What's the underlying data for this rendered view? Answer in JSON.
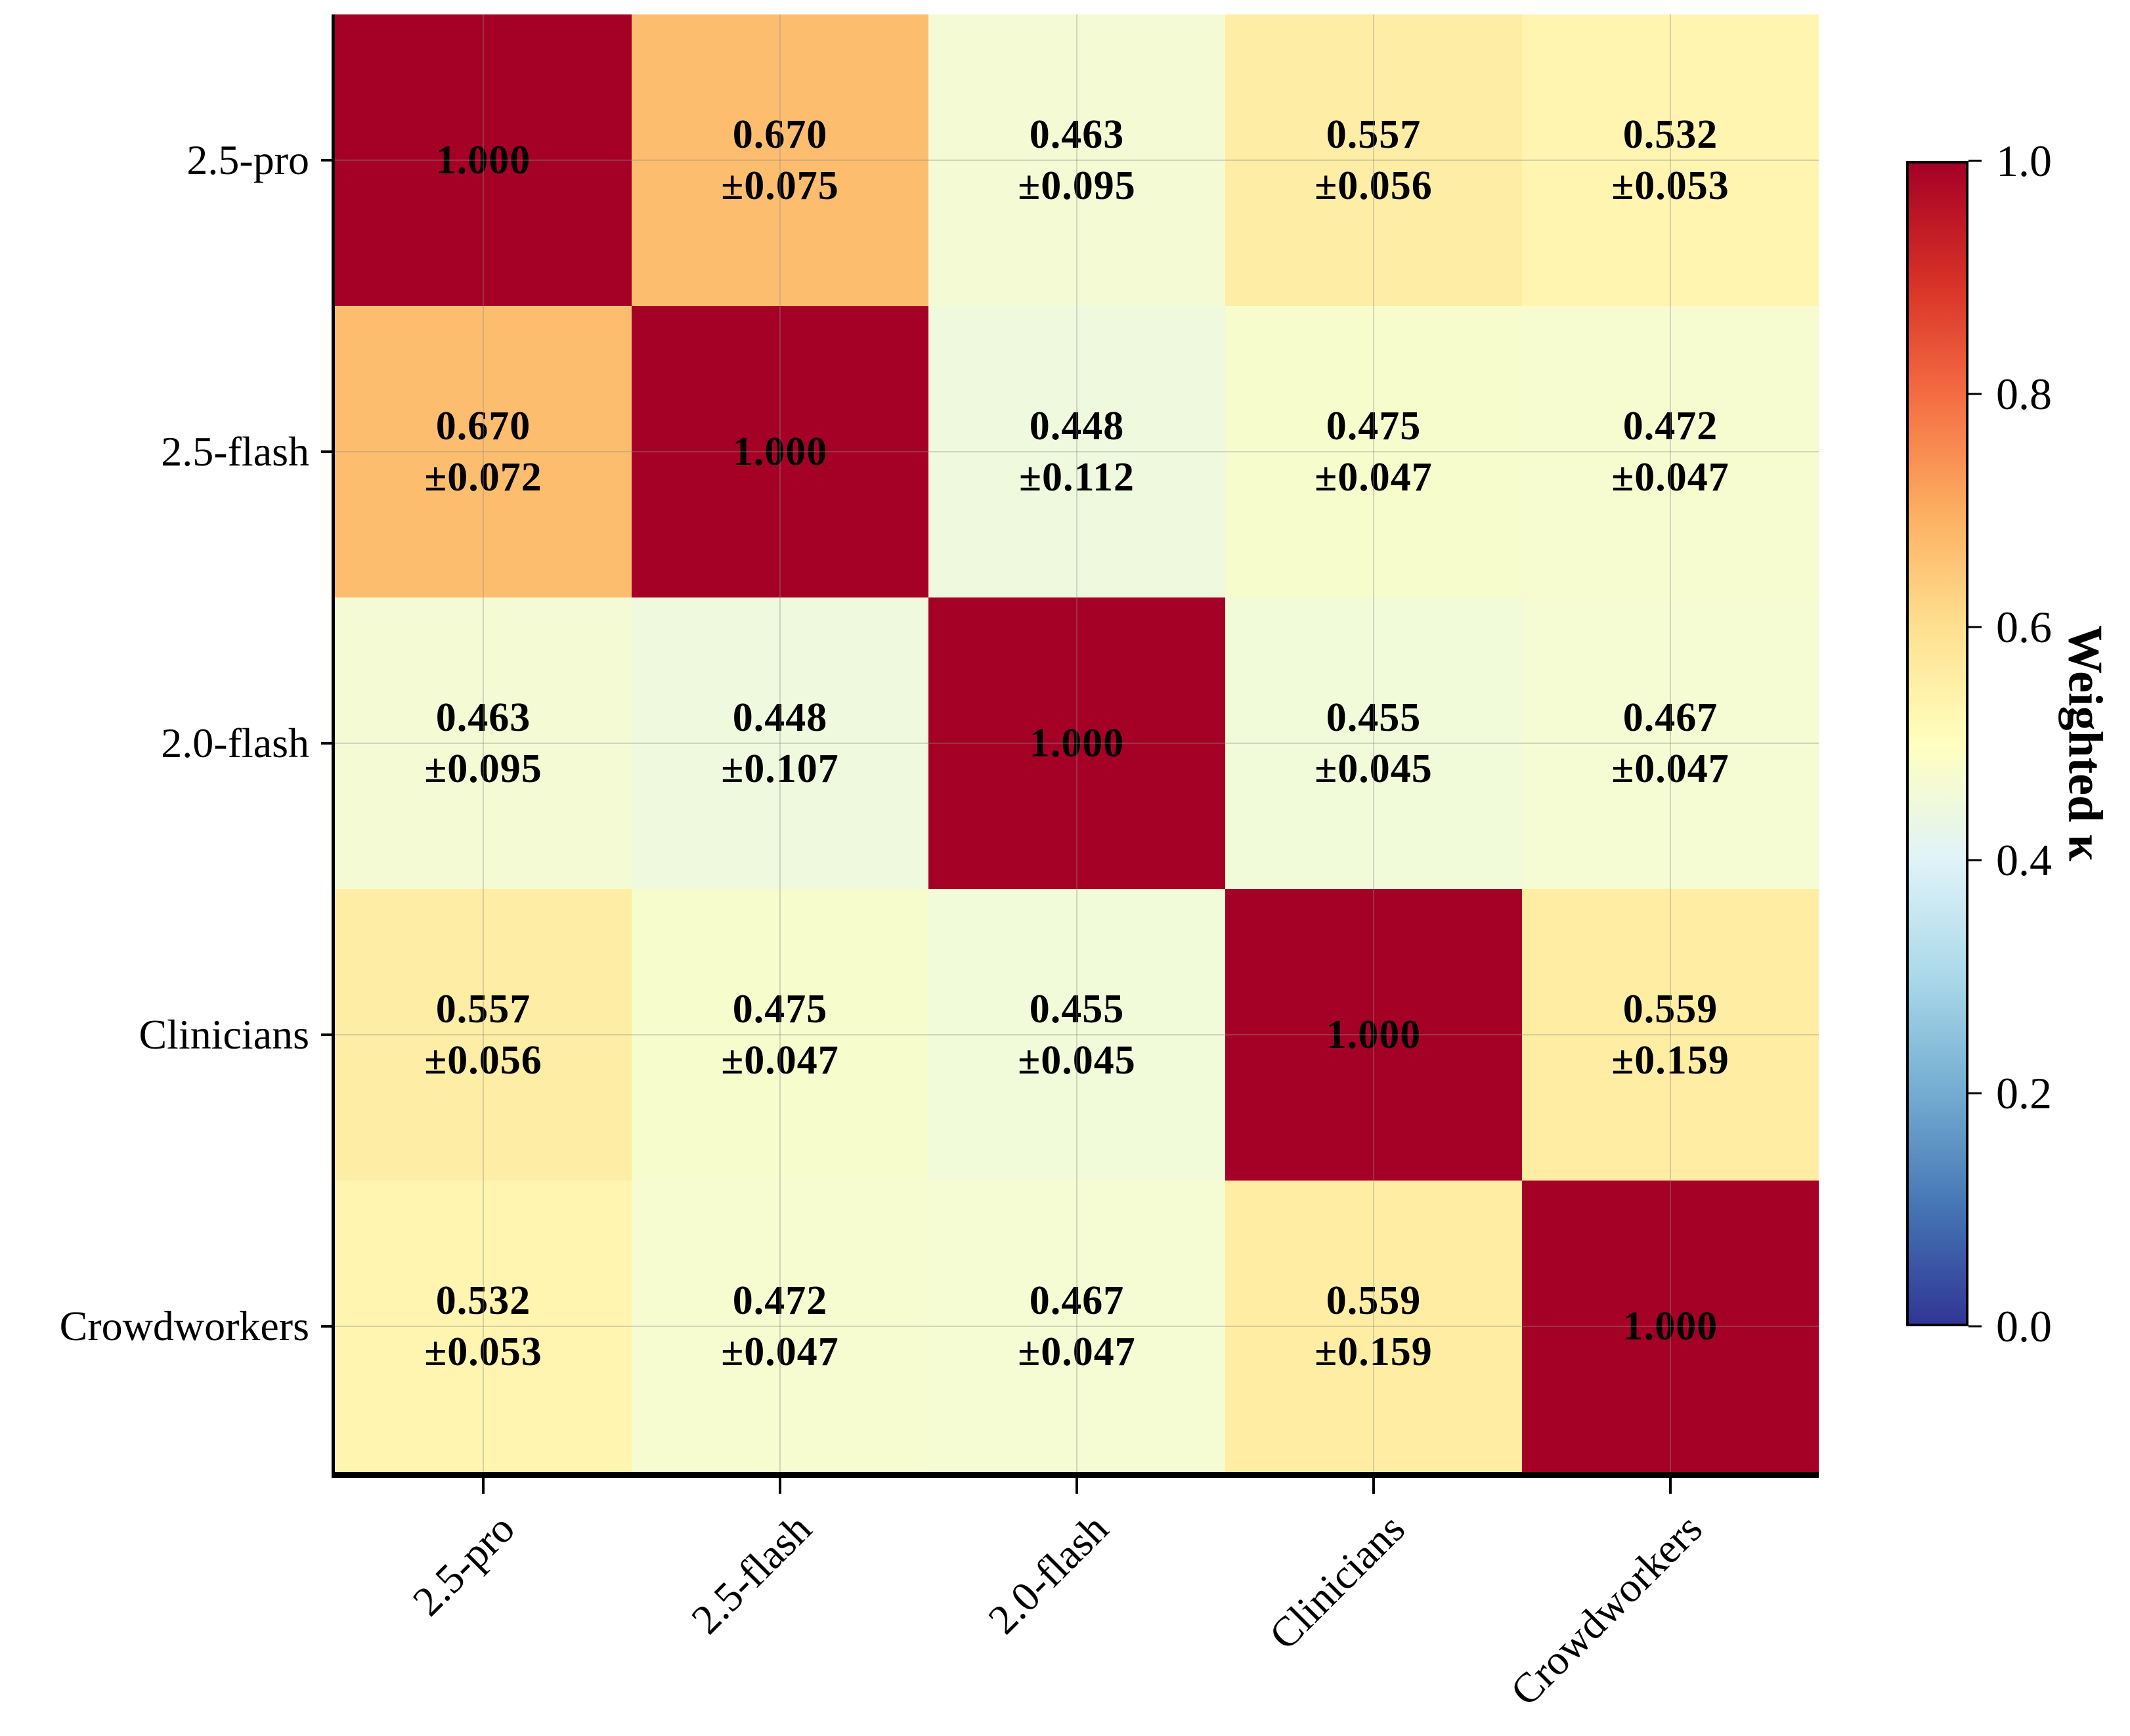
{
  "figure": {
    "background": "#ffffff",
    "text_color": "#000000"
  },
  "chart_data": {
    "type": "heatmap",
    "title": "",
    "x_categories": [
      "2.5-pro",
      "2.5-flash",
      "2.0-flash",
      "Clinicians",
      "Crowdworkers"
    ],
    "y_categories": [
      "2.5-pro",
      "2.5-flash",
      "2.0-flash",
      "Clinicians",
      "Crowdworkers"
    ],
    "values": [
      [
        1.0,
        0.67,
        0.463,
        0.557,
        0.532
      ],
      [
        0.67,
        1.0,
        0.448,
        0.475,
        0.472
      ],
      [
        0.463,
        0.448,
        1.0,
        0.455,
        0.467
      ],
      [
        0.557,
        0.475,
        0.455,
        1.0,
        0.559
      ],
      [
        0.532,
        0.472,
        0.467,
        0.559,
        1.0
      ]
    ],
    "errors": [
      [
        null,
        0.075,
        0.095,
        0.056,
        0.053
      ],
      [
        0.072,
        null,
        0.112,
        0.047,
        0.047
      ],
      [
        0.095,
        0.107,
        null,
        0.045,
        0.047
      ],
      [
        0.056,
        0.047,
        0.045,
        null,
        0.159
      ],
      [
        0.053,
        0.047,
        0.047,
        0.159,
        null
      ]
    ],
    "error_prefix": "±",
    "value_decimals": 3,
    "grid": true,
    "legend_position": "right-colorbar",
    "colorbar": {
      "label": "Weighted κ",
      "tick_labels": [
        "1.0",
        "0.8",
        "0.6",
        "0.4",
        "0.2",
        "0.0"
      ],
      "vmin": 0.0,
      "vmax": 1.0
    },
    "colormap": {
      "name": "RdYlBu_r",
      "anchors": [
        "#313695",
        "#4575b4",
        "#74add1",
        "#abd9e9",
        "#e0f3f8",
        "#ffffbf",
        "#fee090",
        "#fdae61",
        "#f46d43",
        "#d73027",
        "#a50026"
      ]
    }
  }
}
